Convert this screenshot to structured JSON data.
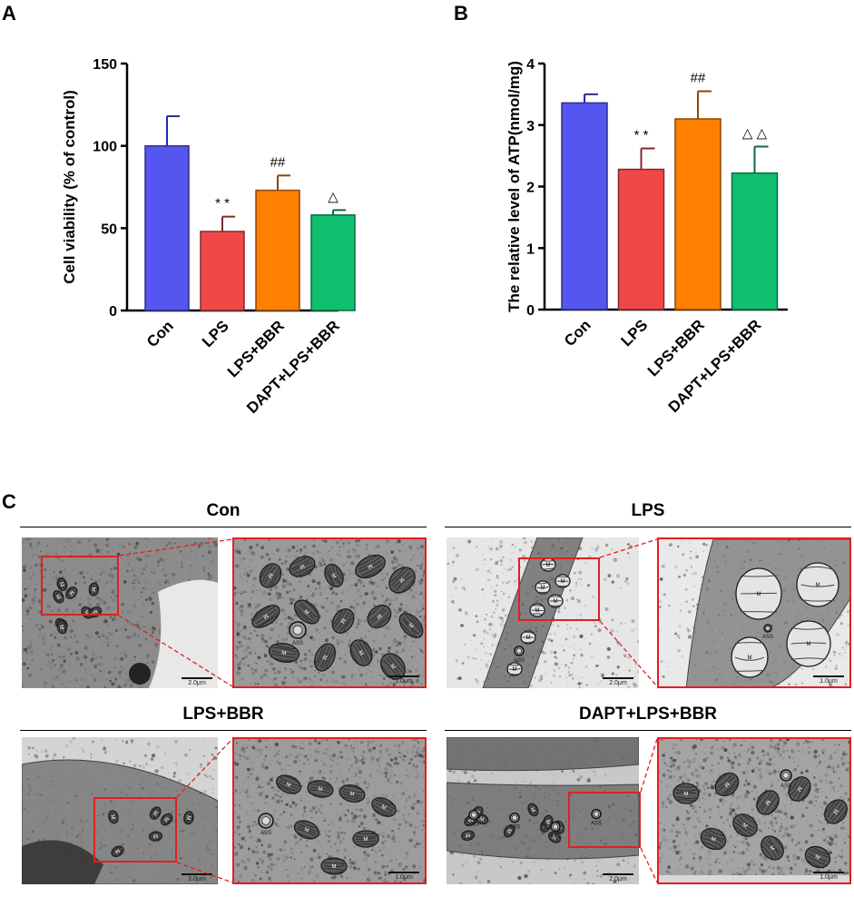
{
  "panels": {
    "a": {
      "letter": "A"
    },
    "b": {
      "letter": "B"
    },
    "c": {
      "letter": "C"
    }
  },
  "chart_data": [
    {
      "type": "bar",
      "panel": "A",
      "categories": [
        "Con",
        "LPS",
        "LPS+BBR",
        "DAPT+LPS+BBR"
      ],
      "values": [
        100,
        48,
        73,
        58
      ],
      "errors": [
        18,
        9,
        9,
        3
      ],
      "annotations": [
        "",
        "* *",
        "##",
        "△"
      ],
      "colors": [
        "#5555f0",
        "#f04848",
        "#ff8000",
        "#10c070"
      ],
      "title": "",
      "xlabel": "",
      "ylabel": "Cell viability (% of control)",
      "ylim": [
        0,
        150
      ],
      "yticks": [
        0,
        50,
        100,
        150
      ],
      "grid": false,
      "legend": "none"
    },
    {
      "type": "bar",
      "panel": "B",
      "categories": [
        "Con",
        "LPS",
        "LPS+BBR",
        "DAPT+LPS+BBR"
      ],
      "values": [
        3.36,
        2.28,
        3.1,
        2.22
      ],
      "errors": [
        0.14,
        0.34,
        0.45,
        0.43
      ],
      "annotations": [
        "",
        "* *",
        "##",
        "△ △"
      ],
      "colors": [
        "#5555f0",
        "#f04848",
        "#ff8000",
        "#10c070"
      ],
      "title": "",
      "xlabel": "",
      "ylabel": "The relative level of ATP(nmol/mg)",
      "ylim": [
        0,
        4
      ],
      "yticks": [
        0,
        1,
        2,
        3,
        4
      ],
      "grid": false,
      "legend": "none"
    }
  ],
  "micrographs": [
    {
      "title": "Con",
      "scale_overview": "2.0μm",
      "scale_inset": "1.0μm"
    },
    {
      "title": "LPS",
      "scale_overview": "2.0μm",
      "scale_inset": "1.0μm"
    },
    {
      "title": "LPS+BBR",
      "scale_overview": "2.0μm",
      "scale_inset": "1.0μm"
    },
    {
      "title": "DAPT+LPS+BBR",
      "scale_overview": "2.0μm",
      "scale_inset": "1.0μm"
    }
  ],
  "organelle_labels": {
    "mitochondria": "M",
    "autophagosome": "ASS"
  }
}
